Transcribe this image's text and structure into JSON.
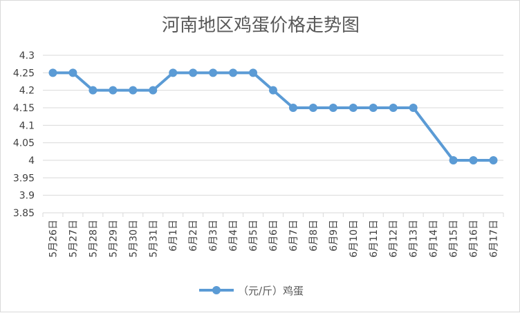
{
  "chart_data": {
    "type": "line",
    "title": "河南地区鸡蛋价格走势图",
    "xlabel": "",
    "ylabel": "",
    "categories": [
      "5月26日",
      "5月27日",
      "5月28日",
      "5月29日",
      "5月30日",
      "5月31日",
      "6月1日",
      "6月2日",
      "6月3日",
      "6月4日",
      "6月5日",
      "6月6日",
      "6月7日",
      "6月8日",
      "6月9日",
      "6月10日",
      "6月11日",
      "6月12日",
      "6月13日",
      "6月14日",
      "6月15日",
      "6月16日",
      "6月17日"
    ],
    "series": [
      {
        "name": "（元/斤）鸡蛋",
        "values": [
          4.25,
          4.25,
          4.2,
          4.2,
          4.2,
          4.2,
          4.25,
          4.25,
          4.25,
          4.25,
          4.25,
          4.2,
          4.15,
          4.15,
          4.15,
          4.15,
          4.15,
          4.15,
          4.15,
          null,
          4.0,
          4.0,
          4.0
        ],
        "color": "#5b9bd5"
      }
    ],
    "ylim": [
      3.85,
      4.3
    ],
    "yticks": [
      3.85,
      3.9,
      3.95,
      4,
      4.05,
      4.1,
      4.15,
      4.2,
      4.25,
      4.3
    ],
    "ytick_labels": [
      "3.85",
      "3.9",
      "3.95",
      "4",
      "4.05",
      "4.1",
      "4.15",
      "4.2",
      "4.25",
      "4.3"
    ],
    "grid": true,
    "legend": "bottom",
    "gridColor": "#d9d9d9"
  }
}
